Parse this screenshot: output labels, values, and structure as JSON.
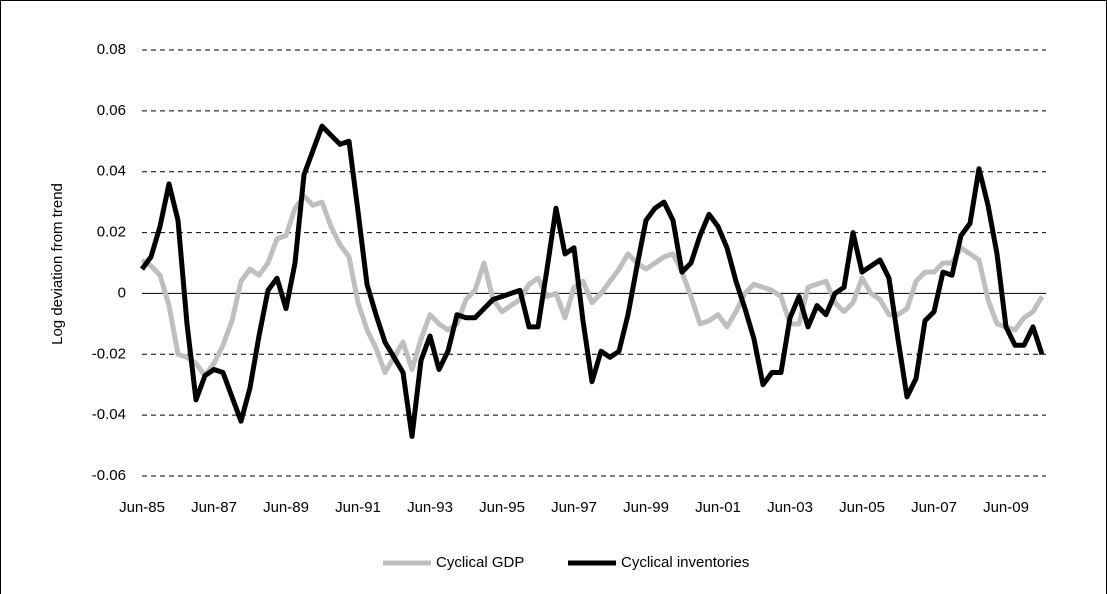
{
  "chart_data": {
    "type": "line",
    "y_label": "Log deviation from trend",
    "categories": [
      "Jun-85",
      null,
      null,
      null,
      null,
      null,
      null,
      null,
      "Jun-87",
      null,
      null,
      null,
      null,
      null,
      null,
      null,
      "Jun-89",
      null,
      null,
      null,
      null,
      null,
      null,
      null,
      "Jun-91",
      null,
      null,
      null,
      null,
      null,
      null,
      null,
      "Jun-93",
      null,
      null,
      null,
      null,
      null,
      null,
      null,
      "Jun-95",
      null,
      null,
      null,
      null,
      null,
      null,
      null,
      "Jun-97",
      null,
      null,
      null,
      null,
      null,
      null,
      null,
      "Jun-99",
      null,
      null,
      null,
      null,
      null,
      null,
      null,
      "Jun-01",
      null,
      null,
      null,
      null,
      null,
      null,
      null,
      "Jun-03",
      null,
      null,
      null,
      null,
      null,
      null,
      null,
      "Jun-05",
      null,
      null,
      null,
      null,
      null,
      null,
      null,
      "Jun-07",
      null,
      null,
      null,
      null,
      null,
      null,
      null,
      "Jun-09",
      null,
      null,
      null,
      null
    ],
    "series": [
      {
        "name": "Cyclical GDP",
        "color": "#bfbfbf",
        "values": [
          0.011,
          0.009,
          0.006,
          -0.004,
          -0.02,
          -0.021,
          -0.023,
          -0.027,
          -0.023,
          -0.017,
          -0.009,
          0.004,
          0.008,
          0.006,
          0.01,
          0.018,
          0.019,
          0.028,
          0.032,
          0.029,
          0.03,
          0.022,
          0.016,
          0.012,
          -0.003,
          -0.012,
          -0.018,
          -0.026,
          -0.021,
          -0.016,
          -0.025,
          -0.015,
          -0.007,
          -0.01,
          -0.012,
          -0.01,
          -0.002,
          0.001,
          0.01,
          -0.002,
          -0.006,
          -0.004,
          -0.002,
          0.003,
          0.005,
          -0.001,
          0.0,
          -0.008,
          0.002,
          0.004,
          -0.003,
          0.0,
          0.004,
          0.008,
          0.013,
          0.01,
          0.008,
          0.01,
          0.012,
          0.013,
          0.007,
          -0.001,
          -0.01,
          -0.009,
          -0.007,
          -0.011,
          -0.006,
          0.0,
          0.003,
          0.002,
          0.001,
          -0.001,
          -0.01,
          -0.01,
          0.002,
          0.003,
          0.004,
          -0.003,
          -0.006,
          -0.003,
          0.005,
          0.0,
          -0.002,
          -0.007,
          -0.007,
          -0.005,
          0.004,
          0.007,
          0.007,
          0.01,
          0.01,
          0.015,
          0.013,
          0.011,
          -0.002,
          -0.01,
          -0.011,
          -0.012,
          -0.008,
          -0.006,
          -0.001
        ]
      },
      {
        "name": "Cyclical inventories",
        "color": "#000000",
        "values": [
          0.008,
          0.012,
          0.022,
          0.036,
          0.024,
          -0.01,
          -0.035,
          -0.027,
          -0.025,
          -0.026,
          -0.034,
          -0.042,
          -0.031,
          -0.014,
          0.001,
          0.005,
          -0.005,
          0.01,
          0.039,
          0.047,
          0.055,
          0.052,
          0.049,
          0.05,
          0.027,
          0.003,
          -0.007,
          -0.016,
          -0.021,
          -0.026,
          -0.047,
          -0.022,
          -0.014,
          -0.025,
          -0.019,
          -0.007,
          -0.008,
          -0.008,
          -0.005,
          -0.002,
          -0.001,
          0.0,
          0.001,
          -0.011,
          -0.011,
          0.008,
          0.028,
          0.013,
          0.015,
          -0.009,
          -0.029,
          -0.019,
          -0.021,
          -0.019,
          -0.007,
          0.009,
          0.024,
          0.028,
          0.03,
          0.024,
          0.007,
          0.01,
          0.019,
          0.026,
          0.022,
          0.015,
          0.004,
          -0.005,
          -0.015,
          -0.03,
          -0.026,
          -0.026,
          -0.008,
          -0.001,
          -0.011,
          -0.004,
          -0.007,
          0.0,
          0.002,
          0.02,
          0.007,
          0.009,
          0.011,
          0.005,
          -0.015,
          -0.034,
          -0.028,
          -0.009,
          -0.006,
          0.007,
          0.006,
          0.019,
          0.023,
          0.041,
          0.029,
          0.013,
          -0.011,
          -0.017,
          -0.017,
          -0.011,
          -0.02
        ]
      }
    ],
    "ylim": [
      -0.06,
      0.08
    ],
    "yticks": [
      -0.06,
      -0.04,
      -0.02,
      0,
      0.02,
      0.04,
      0.06,
      0.08
    ],
    "grid": true,
    "legend": "bottom"
  }
}
